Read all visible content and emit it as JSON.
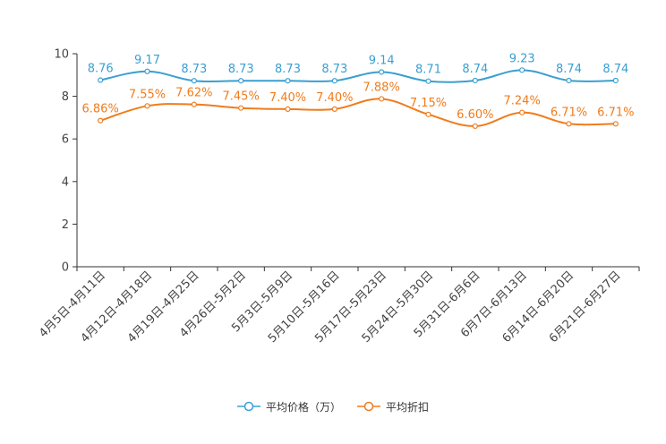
{
  "chart_data": {
    "type": "line",
    "categories": [
      "4月5日-4月11日",
      "4月12日-4月18日",
      "4月19日-4月25日",
      "4月26日-5月2日",
      "5月3日-5月9日",
      "5月10日-5月16日",
      "5月17日-5月23日",
      "5月24日-5月30日",
      "5月31日-6月6日",
      "6月7日-6月13日",
      "6月14日-6月20日",
      "6月21日-6月27日"
    ],
    "ylim": [
      0,
      10
    ],
    "yticks": [
      0,
      2,
      4,
      6,
      8,
      10
    ],
    "legend_position": "bottom",
    "series": [
      {
        "name": "平均价格（万）",
        "color": "#3a9fd1",
        "values": [
          8.76,
          9.17,
          8.73,
          8.73,
          8.73,
          8.73,
          9.14,
          8.71,
          8.74,
          9.23,
          8.74,
          8.74
        ],
        "labels": [
          "8.76",
          "9.17",
          "8.73",
          "8.73",
          "8.73",
          "8.73",
          "9.14",
          "8.71",
          "8.74",
          "9.23",
          "8.74",
          "8.74"
        ]
      },
      {
        "name": "平均折扣",
        "color": "#f07c1c",
        "values": [
          6.86,
          7.55,
          7.62,
          7.45,
          7.4,
          7.4,
          7.88,
          7.15,
          6.6,
          7.24,
          6.71,
          6.71
        ],
        "labels": [
          "6.86%",
          "7.55%",
          "7.62%",
          "7.45%",
          "7.40%",
          "7.40%",
          "7.88%",
          "7.15%",
          "6.60%",
          "7.24%",
          "6.71%",
          "6.71%"
        ]
      }
    ]
  }
}
